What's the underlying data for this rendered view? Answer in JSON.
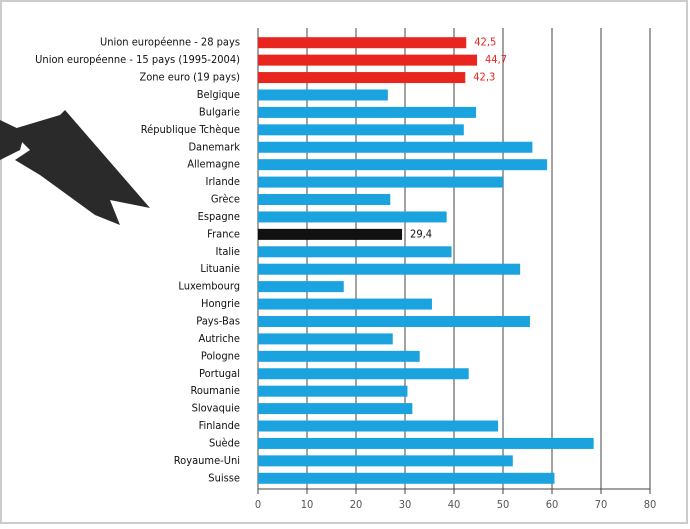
{
  "chart_data": {
    "type": "hbar",
    "categories": [
      "Union européenne - 28 pays",
      "Union européenne - 15 pays (1995-2004)",
      "Zone euro (19 pays)",
      "Belgique",
      "Bulgarie",
      "République Tchèque",
      "Danemark",
      "Allemagne",
      "Irlande",
      "Grèce",
      "Espagne",
      "France",
      "Italie",
      "Lituanie",
      "Luxembourg",
      "Hongrie",
      "Pays-Bas",
      "Autriche",
      "Pologne",
      "Portugal",
      "Roumanie",
      "Slovaquie",
      "Finlande",
      "Suède",
      "Royaume-Uni",
      "Suisse"
    ],
    "values": [
      42.5,
      44.7,
      42.3,
      26.5,
      44.5,
      42,
      56,
      59,
      50,
      27,
      38.5,
      29.4,
      39.5,
      53.5,
      17.5,
      35.5,
      55.5,
      27.5,
      33,
      43,
      30.5,
      31.5,
      49,
      68.5,
      52,
      60.5
    ],
    "value_labels": [
      "42,5",
      "44,7",
      "42,3",
      null,
      null,
      null,
      null,
      null,
      null,
      null,
      null,
      "29,4",
      null,
      null,
      null,
      null,
      null,
      null,
      null,
      null,
      null,
      null,
      null,
      null,
      null,
      null
    ],
    "colors": [
      "#e8251f",
      "#e8251f",
      "#e8251f",
      "#1aa3de",
      "#1aa3de",
      "#1aa3de",
      "#1aa3de",
      "#1aa3de",
      "#1aa3de",
      "#1aa3de",
      "#1aa3de",
      "#111111",
      "#1aa3de",
      "#1aa3de",
      "#1aa3de",
      "#1aa3de",
      "#1aa3de",
      "#1aa3de",
      "#1aa3de",
      "#1aa3de",
      "#1aa3de",
      "#1aa3de",
      "#1aa3de",
      "#1aa3de",
      "#1aa3de",
      "#1aa3de"
    ],
    "xlim": [
      0,
      80
    ],
    "xticks": [
      0,
      10,
      20,
      30,
      40,
      50,
      60,
      70,
      80
    ],
    "grid": true
  }
}
